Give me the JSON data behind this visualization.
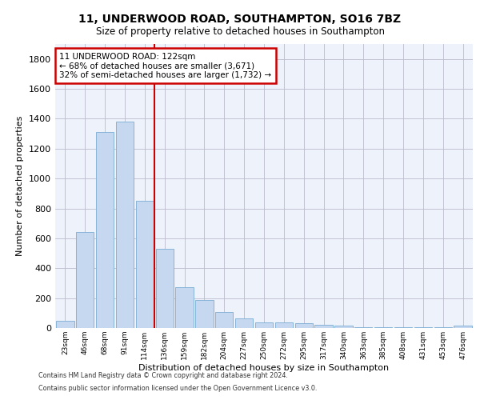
{
  "title_line1": "11, UNDERWOOD ROAD, SOUTHAMPTON, SO16 7BZ",
  "title_line2": "Size of property relative to detached houses in Southampton",
  "xlabel": "Distribution of detached houses by size in Southampton",
  "ylabel": "Number of detached properties",
  "bar_color": "#c5d8f0",
  "bar_edge_color": "#7aadd4",
  "grid_color": "#bbbbcc",
  "background_color": "#eef2fb",
  "annotation_box_color": "#cc0000",
  "vline_color": "#cc0000",
  "categories": [
    "23sqm",
    "46sqm",
    "68sqm",
    "91sqm",
    "114sqm",
    "136sqm",
    "159sqm",
    "182sqm",
    "204sqm",
    "227sqm",
    "250sqm",
    "272sqm",
    "295sqm",
    "317sqm",
    "340sqm",
    "363sqm",
    "385sqm",
    "408sqm",
    "431sqm",
    "453sqm",
    "476sqm"
  ],
  "values": [
    50,
    640,
    1310,
    1380,
    850,
    530,
    275,
    185,
    105,
    65,
    40,
    35,
    30,
    20,
    15,
    5,
    5,
    5,
    5,
    5,
    15
  ],
  "ylim": [
    0,
    1900
  ],
  "yticks": [
    0,
    200,
    400,
    600,
    800,
    1000,
    1200,
    1400,
    1600,
    1800
  ],
  "vline_x_index": 4,
  "annotation_text_line1": "11 UNDERWOOD ROAD: 122sqm",
  "annotation_text_line2": "← 68% of detached houses are smaller (3,671)",
  "annotation_text_line3": "32% of semi-detached houses are larger (1,732) →",
  "footer_line1": "Contains HM Land Registry data © Crown copyright and database right 2024.",
  "footer_line2": "Contains public sector information licensed under the Open Government Licence v3.0."
}
